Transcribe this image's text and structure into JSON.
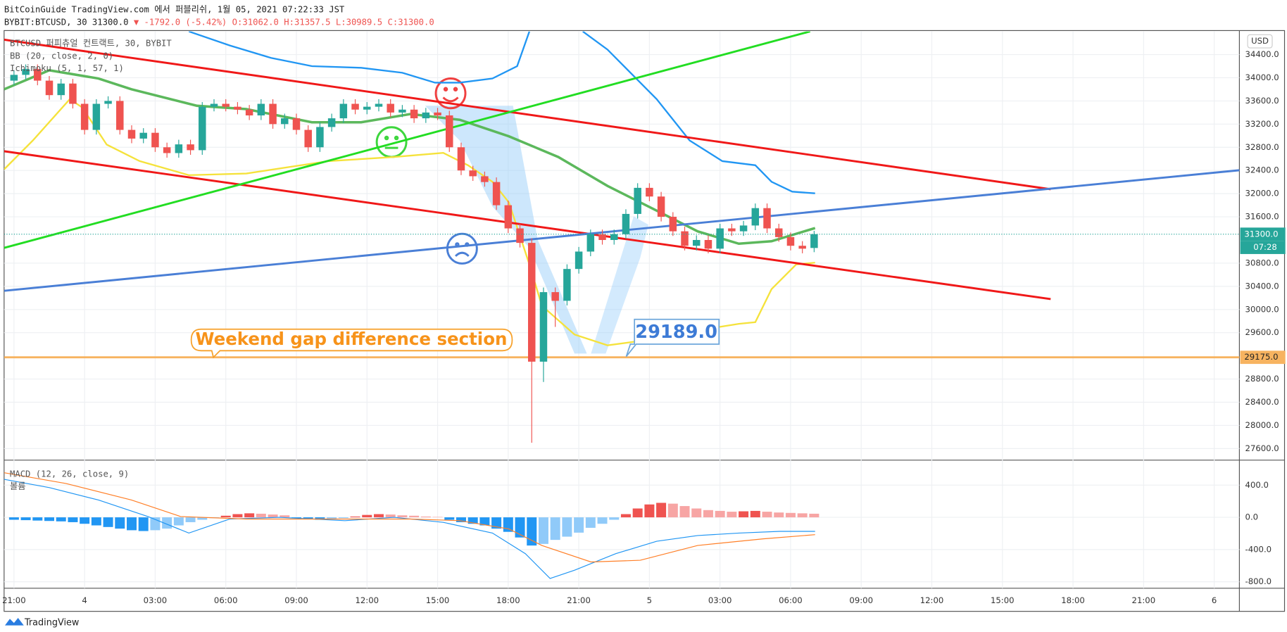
{
  "header": {
    "published": "BitCoinGuide TradingView.com 에서 퍼블리쉬, 1월 05, 2021 07:22:33 JST",
    "symbol": "BYBIT:BTCUSD, 30 31300.0",
    "arrow": "▼",
    "change": "-1792.0 (-5.42%)",
    "ohlc": [
      "O:31062.0",
      "H:31357.5",
      "L:30989.5",
      "C:31300.0"
    ]
  },
  "chart_data": {
    "type": "candlestick",
    "legend": [
      "BTCUSD 퍼피츄얼 컨트랙트, 30, BYBIT",
      "BB (20, close, 2, 0)",
      "Ichimoku (5, 1, 57, 1)"
    ],
    "currency": "USD",
    "up_color": "#26a69a",
    "down_color": "#ef5350",
    "grid": true,
    "xlim": [
      -0.42,
      52.07
    ],
    "xticks": [
      {
        "value": 0,
        "label": "21:00"
      },
      {
        "value": 3,
        "label": "4"
      },
      {
        "value": 6,
        "label": "03:00"
      },
      {
        "value": 9,
        "label": "06:00"
      },
      {
        "value": 12,
        "label": "09:00"
      },
      {
        "value": 15,
        "label": "12:00"
      },
      {
        "value": 18,
        "label": "15:00"
      },
      {
        "value": 21,
        "label": "18:00"
      },
      {
        "value": 24,
        "label": "21:00"
      },
      {
        "value": 27,
        "label": "5"
      },
      {
        "value": 30,
        "label": "03:00"
      },
      {
        "value": 33,
        "label": "06:00"
      },
      {
        "value": 36,
        "label": "09:00"
      },
      {
        "value": 39,
        "label": "12:00"
      },
      {
        "value": 42,
        "label": "15:00"
      },
      {
        "value": 45,
        "label": "18:00"
      },
      {
        "value": 48,
        "label": "21:00"
      },
      {
        "value": 51,
        "label": "6"
      }
    ],
    "ylim": [
      27400,
      34800
    ],
    "yticks": [
      {
        "value": 27600,
        "label": "27600.0"
      },
      {
        "value": 28000,
        "label": "28000.0"
      },
      {
        "value": 28400,
        "label": "28400.0"
      },
      {
        "value": 28800,
        "label": "28800.0"
      },
      {
        "value": 29600,
        "label": "29600.0"
      },
      {
        "value": 30000,
        "label": "30000.0"
      },
      {
        "value": 30400,
        "label": "30400.0"
      },
      {
        "value": 30800,
        "label": "30800.0"
      },
      {
        "value": 31600,
        "label": "31600.0"
      },
      {
        "value": 32000,
        "label": "32000.0"
      },
      {
        "value": 32400,
        "label": "32400.0"
      },
      {
        "value": 32800,
        "label": "32800.0"
      },
      {
        "value": 33200,
        "label": "33200.0"
      },
      {
        "value": 33600,
        "label": "33600.0"
      },
      {
        "value": 34000,
        "label": "34000.0"
      },
      {
        "value": 34400,
        "label": "34400.0"
      }
    ],
    "x": [
      0,
      0.5,
      1,
      1.5,
      2,
      2.5,
      3,
      3.5,
      4,
      4.5,
      5,
      5.5,
      6,
      6.5,
      7,
      7.5,
      8,
      8.5,
      9,
      9.5,
      10,
      10.5,
      11,
      11.5,
      12,
      12.5,
      13,
      13.5,
      14,
      14.5,
      15,
      15.5,
      16,
      16.5,
      17,
      17.5,
      18,
      18.5,
      19,
      19.5,
      20,
      20.5,
      21,
      21.5,
      22,
      22.5,
      23,
      23.5,
      24,
      24.5,
      25,
      25.5,
      26,
      26.5,
      27,
      27.5,
      28,
      28.5,
      29,
      29.5,
      30,
      30.5,
      31,
      31.5,
      32,
      32.5,
      33,
      33.5,
      34
    ],
    "open": [
      33950,
      34050,
      34150,
      33950,
      33700,
      33900,
      33550,
      33100,
      33550,
      33600,
      33100,
      32950,
      33050,
      32800,
      32700,
      32850,
      32750,
      33500,
      33550,
      33500,
      33450,
      33350,
      33550,
      33200,
      33300,
      33100,
      32800,
      33150,
      33300,
      33550,
      33450,
      33500,
      33550,
      33400,
      33450,
      33300,
      33400,
      33350,
      32800,
      32400,
      32300,
      32200,
      31800,
      31400,
      31150,
      29100,
      30300,
      30150,
      30700,
      31000,
      31300,
      31200,
      31300,
      31650,
      32100,
      31950,
      31600,
      31350,
      31100,
      31200,
      31050,
      31400,
      31350,
      31450,
      31750,
      31400,
      31250,
      31100,
      31062
    ],
    "high": [
      34130,
      34230,
      34230,
      34030,
      33980,
      33980,
      33630,
      33630,
      33680,
      33680,
      33180,
      33130,
      33130,
      32880,
      32930,
      32930,
      33580,
      33630,
      33630,
      33580,
      33530,
      33630,
      33630,
      33380,
      33380,
      33180,
      33230,
      33380,
      33630,
      33630,
      33580,
      33630,
      33630,
      33530,
      33530,
      33480,
      33480,
      33430,
      32880,
      32480,
      32380,
      32280,
      31880,
      31480,
      31230,
      30380,
      30380,
      30780,
      31080,
      31380,
      31380,
      31380,
      31730,
      32180,
      32180,
      32030,
      31680,
      31430,
      31280,
      31280,
      31480,
      31480,
      31530,
      31830,
      31830,
      31480,
      31330,
      31180,
      31357.5
    ],
    "low": [
      33870,
      33970,
      33870,
      33620,
      33620,
      33470,
      33020,
      33020,
      33470,
      33020,
      32870,
      32870,
      32720,
      32620,
      32620,
      32670,
      32670,
      33420,
      33420,
      33370,
      33270,
      33270,
      33120,
      33120,
      33020,
      32720,
      32720,
      33070,
      33220,
      33370,
      33370,
      33420,
      33320,
      33320,
      33220,
      33220,
      33270,
      32720,
      32320,
      32220,
      32120,
      31720,
      31320,
      31070,
      27700,
      28750,
      29700,
      30070,
      30620,
      30920,
      31120,
      31120,
      31220,
      31570,
      31870,
      31520,
      31270,
      31020,
      31020,
      30970,
      30970,
      31270,
      31270,
      31370,
      31320,
      31170,
      31020,
      30970,
      30989.5
    ],
    "close": [
      34050,
      34150,
      33950,
      33700,
      33900,
      33550,
      33100,
      33550,
      33600,
      33100,
      32950,
      33050,
      32800,
      32700,
      32850,
      32750,
      33500,
      33550,
      33500,
      33450,
      33350,
      33550,
      33200,
      33300,
      33100,
      32800,
      33150,
      33300,
      33550,
      33450,
      33500,
      33550,
      33400,
      33450,
      33300,
      33400,
      33350,
      32800,
      32400,
      32300,
      32200,
      31800,
      31400,
      31150,
      29100,
      30300,
      30150,
      30700,
      31000,
      31300,
      31200,
      31300,
      31650,
      32100,
      31950,
      31600,
      31350,
      31100,
      31200,
      31050,
      31400,
      31350,
      31450,
      31750,
      31400,
      31250,
      31100,
      31050,
      31300
    ],
    "lines": [
      {
        "color": "#2196f3",
        "width": 2,
        "x": [
          7.43,
          9.17,
          10.92,
          12.66,
          14.75,
          16.5,
          17.89,
          18.94,
          20.33,
          21.38,
          21.9,
          null,
          24.17,
          25.22,
          27.31,
          28.71,
          30.1,
          31.5,
          32.19,
          33.07,
          34.04
        ],
        "values": [
          34799,
          34557,
          34343,
          34200,
          34172,
          34086,
          33915,
          33915,
          33987,
          34200,
          34799,
          null,
          34799,
          34486,
          33630,
          32917,
          32561,
          32490,
          32205,
          32034,
          32005
        ]
      },
      {
        "color": "#5cb85c",
        "width": 3,
        "x": [
          -0.42,
          1.5,
          3.59,
          4.99,
          7.78,
          9.87,
          12.66,
          14.75,
          16.85,
          18.94,
          21.03,
          23.13,
          25.22,
          27.31,
          29.05,
          30.8,
          32.19,
          34.04
        ],
        "values": [
          33801,
          34129,
          33987,
          33801,
          33516,
          33459,
          33231,
          33231,
          33374,
          33274,
          32989,
          32632,
          32133,
          31706,
          31349,
          31136,
          31178,
          31406
        ]
      },
      {
        "color": "#f5e23b",
        "width": 2,
        "x": [
          -0.42,
          0.8,
          2.37,
          2.9,
          3.94,
          5.34,
          7.43,
          9.87,
          13.36,
          16.15,
          18.24,
          19.29,
          20.33,
          21.03,
          21.9,
          22.43,
          23.82,
          25.22,
          27.31,
          29.05,
          30.8,
          31.5,
          32.19,
          33.24,
          34.04
        ],
        "values": [
          32419,
          32917,
          33630,
          33487,
          32846,
          32561,
          32319,
          32347,
          32561,
          32632,
          32704,
          32490,
          32205,
          31848,
          30779,
          30066,
          29568,
          29382,
          29496,
          29639,
          29753,
          29781,
          30352,
          30779,
          30808
        ]
      }
    ],
    "drawings": [
      {
        "color": "#f01818",
        "points": [
          [
            -0.42,
            34657
          ],
          [
            44.05,
            32076
          ]
        ]
      },
      {
        "color": "#f01818",
        "points": [
          [
            -0.42,
            32732
          ],
          [
            44.05,
            30180
          ]
        ]
      },
      {
        "color": "#22dd22",
        "points": [
          [
            -0.42,
            31064
          ],
          [
            33.83,
            34800
          ]
        ]
      },
      {
        "color": "#4a7fd6",
        "points": [
          [
            -0.42,
            30323
          ],
          [
            52.07,
            32404
          ]
        ]
      }
    ],
    "hline": {
      "value": 29175,
      "label": "29175.0",
      "color": "#f7b360"
    },
    "price_tag": {
      "value": 31300,
      "label": "31300.0",
      "color": "#26a69a"
    },
    "time_left": "07:28",
    "annotation": "Weekend gap difference section",
    "price_label": {
      "value": 29189,
      "label": "29189.0"
    },
    "macd": {
      "title": "MACD (12, 26, close, 9)",
      "volume_title": "볼륨",
      "ylim": [
        -880,
        710
      ],
      "yticks": [
        {
          "value": 400,
          "label": "400.0"
        },
        {
          "value": 0,
          "label": "0.0"
        },
        {
          "value": -400,
          "label": "-400.0"
        },
        {
          "value": -800,
          "label": "-800.0"
        }
      ],
      "histogram": [
        -30,
        -35,
        -40,
        -45,
        -50,
        -60,
        -80,
        -100,
        -120,
        -140,
        -160,
        -170,
        -160,
        -140,
        -100,
        -60,
        -30,
        -10,
        20,
        40,
        50,
        45,
        35,
        25,
        -10,
        -20,
        -30,
        -20,
        -10,
        10,
        30,
        40,
        35,
        25,
        20,
        10,
        5,
        -30,
        -60,
        -80,
        -100,
        -140,
        -180,
        -250,
        -350,
        -330,
        -280,
        -240,
        -190,
        -130,
        -80,
        -30,
        40,
        110,
        160,
        180,
        170,
        140,
        110,
        90,
        80,
        70,
        75,
        80,
        70,
        60,
        55,
        50,
        45
      ],
      "lines": [
        {
          "color": "#2196f3",
          "width": 1,
          "x": [
            -0.42,
            1.5,
            3.59,
            5.69,
            7.43,
            9.17,
            11.27,
            14.06,
            16.15,
            18.24,
            20.33,
            21.73,
            22.78,
            23.82,
            25.57,
            27.31,
            29.05,
            30.8,
            32.54,
            34.04
          ],
          "values": [
            472,
            369,
            215,
            10,
            -195,
            -21,
            0,
            -41,
            0,
            -62,
            -195,
            -451,
            -759,
            -656,
            -451,
            -297,
            -226,
            -195,
            -174,
            -174
          ]
        },
        {
          "color": "#ff7f27",
          "width": 1,
          "x": [
            -0.42,
            2.2,
            4.99,
            7.08,
            9.87,
            13.36,
            16.85,
            18.94,
            21.03,
            22.43,
            24.52,
            26.61,
            29.05,
            31.84,
            34.04
          ],
          "values": [
            554,
            421,
            215,
            10,
            -21,
            -21,
            -21,
            -41,
            -144,
            -349,
            -554,
            -533,
            -349,
            -267,
            -215
          ]
        }
      ]
    }
  },
  "footer": {
    "brand": "TradingView"
  }
}
